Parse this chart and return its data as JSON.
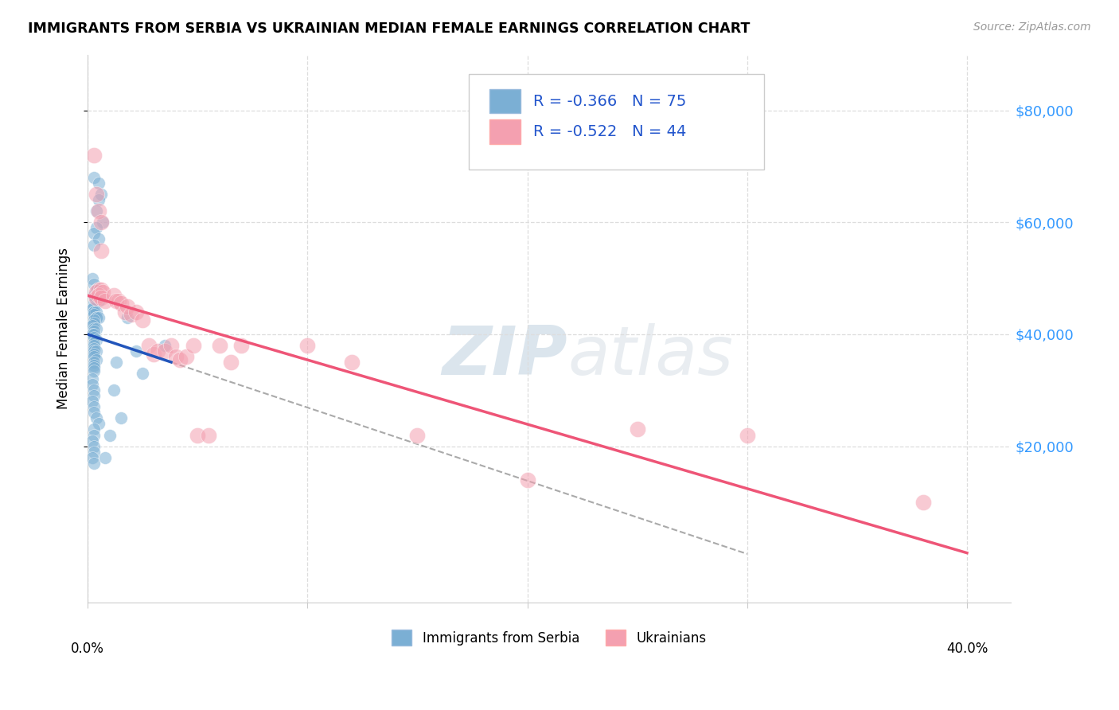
{
  "title": "IMMIGRANTS FROM SERBIA VS UKRAINIAN MEDIAN FEMALE EARNINGS CORRELATION CHART",
  "source": "Source: ZipAtlas.com",
  "ylabel": "Median Female Earnings",
  "y_ticks": [
    20000,
    40000,
    60000,
    80000
  ],
  "y_tick_labels": [
    "$20,000",
    "$40,000",
    "$60,000",
    "$80,000"
  ],
  "xlim": [
    0.0,
    0.42
  ],
  "ylim": [
    -8000,
    90000
  ],
  "serbia_R": "-0.366",
  "serbia_N": "75",
  "ukraine_R": "-0.522",
  "ukraine_N": "44",
  "serbia_color": "#7BAFD4",
  "ukraine_color": "#F4A0B0",
  "serbia_line_color": "#2255BB",
  "ukraine_line_color": "#EE5577",
  "watermark_zip": "ZIP",
  "watermark_atlas": "atlas",
  "background_color": "#ffffff",
  "grid_color": "#dddddd",
  "serbia_scatter_x": [
    0.003,
    0.005,
    0.006,
    0.005,
    0.004,
    0.007,
    0.004,
    0.003,
    0.005,
    0.003,
    0.002,
    0.003,
    0.004,
    0.004,
    0.003,
    0.004,
    0.004,
    0.005,
    0.003,
    0.003,
    0.002,
    0.003,
    0.003,
    0.004,
    0.003,
    0.004,
    0.004,
    0.005,
    0.003,
    0.003,
    0.002,
    0.003,
    0.004,
    0.003,
    0.002,
    0.003,
    0.003,
    0.004,
    0.003,
    0.003,
    0.003,
    0.003,
    0.004,
    0.003,
    0.003,
    0.004,
    0.003,
    0.003,
    0.003,
    0.003,
    0.002,
    0.002,
    0.003,
    0.003,
    0.002,
    0.003,
    0.003,
    0.004,
    0.005,
    0.003,
    0.003,
    0.002,
    0.003,
    0.003,
    0.002,
    0.003,
    0.013,
    0.018,
    0.022,
    0.025,
    0.012,
    0.035,
    0.015,
    0.01,
    0.008
  ],
  "serbia_scatter_y": [
    68000,
    67000,
    65000,
    64000,
    62000,
    60000,
    59000,
    58000,
    57000,
    56000,
    50000,
    49000,
    48000,
    48000,
    47000,
    47000,
    46500,
    46000,
    45500,
    45000,
    44500,
    44000,
    44000,
    44000,
    43500,
    43000,
    43000,
    43000,
    42500,
    42000,
    41500,
    41000,
    41000,
    40500,
    40000,
    40000,
    39500,
    39000,
    38500,
    38000,
    37500,
    37000,
    37000,
    36500,
    36000,
    35500,
    35000,
    34500,
    34000,
    33500,
    32000,
    31000,
    30000,
    29000,
    28000,
    27000,
    26000,
    25000,
    24000,
    23000,
    22000,
    21000,
    20000,
    19000,
    18000,
    17000,
    35000,
    43000,
    37000,
    33000,
    30000,
    38000,
    25000,
    22000,
    18000
  ],
  "ukraine_scatter_x": [
    0.003,
    0.004,
    0.005,
    0.006,
    0.005,
    0.004,
    0.006,
    0.005,
    0.004,
    0.006,
    0.005,
    0.007,
    0.006,
    0.008,
    0.012,
    0.014,
    0.013,
    0.015,
    0.017,
    0.018,
    0.02,
    0.022,
    0.025,
    0.028,
    0.03,
    0.032,
    0.035,
    0.038,
    0.04,
    0.042,
    0.045,
    0.048,
    0.05,
    0.055,
    0.06,
    0.065,
    0.07,
    0.1,
    0.12,
    0.15,
    0.2,
    0.25,
    0.3,
    0.38
  ],
  "ukraine_scatter_y": [
    72000,
    65000,
    62000,
    60000,
    48000,
    47500,
    48000,
    47000,
    46500,
    55000,
    47000,
    47500,
    46500,
    46000,
    47000,
    46000,
    46000,
    45500,
    44000,
    45000,
    43500,
    44000,
    42500,
    38000,
    36500,
    37000,
    37000,
    38000,
    36000,
    35500,
    36000,
    38000,
    22000,
    22000,
    38000,
    35000,
    38000,
    38000,
    35000,
    22000,
    14000,
    23000,
    22000,
    10000
  ]
}
